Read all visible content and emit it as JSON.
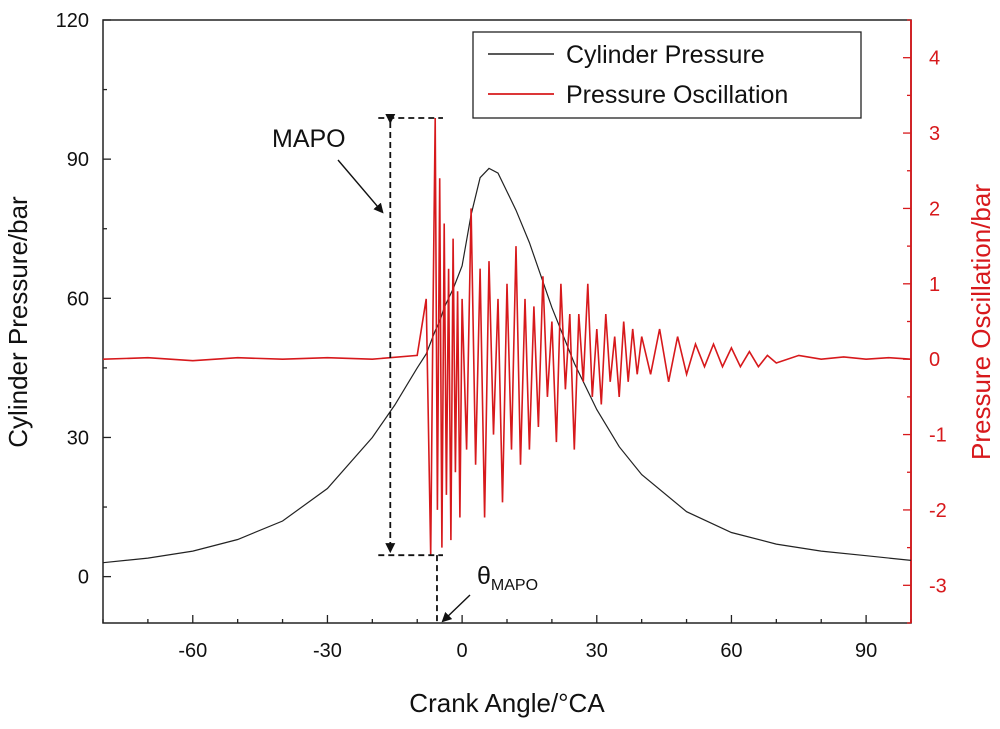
{
  "chart_data": {
    "type": "line",
    "xlabel": "Crank Angle/°CA",
    "ylabel_left": "Cylinder Pressure/bar",
    "ylabel_right": "Pressure Oscillation/bar",
    "xlim": [
      -80,
      100
    ],
    "ylim_left": [
      -10,
      120
    ],
    "ylim_right": [
      -3.5,
      4.5
    ],
    "x_ticks": [
      -60,
      -30,
      0,
      30,
      60,
      90
    ],
    "y_ticks_left": [
      0,
      30,
      60,
      90,
      120
    ],
    "y_ticks_right": [
      -3,
      -2,
      -1,
      0,
      1,
      2,
      3,
      4
    ],
    "legend_position": "top-right",
    "colors": {
      "pressure": "#222222",
      "oscillation": "#d7191c"
    },
    "series": [
      {
        "name": "Cylinder Pressure",
        "axis": "left",
        "x": [
          -80,
          -70,
          -60,
          -50,
          -40,
          -30,
          -20,
          -15,
          -10,
          -8,
          -6,
          -5,
          -4,
          -3,
          -2,
          0,
          2,
          4,
          6,
          8,
          10,
          12,
          15,
          20,
          25,
          30,
          35,
          40,
          50,
          60,
          70,
          80,
          90,
          100
        ],
        "values": [
          3,
          4,
          5.5,
          8,
          12,
          19,
          30,
          37,
          45,
          48,
          53,
          55,
          58,
          60,
          62,
          67,
          78,
          86,
          88,
          87,
          83,
          79,
          72,
          58,
          46,
          36,
          28,
          22,
          14,
          9.5,
          7,
          5.5,
          4.5,
          3.5
        ]
      },
      {
        "name": "Pressure Oscillation",
        "axis": "right",
        "x": [
          -80,
          -70,
          -60,
          -50,
          -40,
          -30,
          -20,
          -10,
          -8,
          -7,
          -6.5,
          -6,
          -5.5,
          -5,
          -4.5,
          -4,
          -3.5,
          -3,
          -2.5,
          -2,
          -1.5,
          -1,
          -0.5,
          0,
          1,
          2,
          3,
          4,
          5,
          6,
          7,
          8,
          9,
          10,
          11,
          12,
          13,
          14,
          15,
          16,
          17,
          18,
          19,
          20,
          21,
          22,
          23,
          24,
          25,
          26,
          27,
          28,
          29,
          30,
          31,
          32,
          33,
          34,
          35,
          36,
          37,
          38,
          39,
          40,
          42,
          44,
          46,
          48,
          50,
          52,
          54,
          56,
          58,
          60,
          62,
          64,
          66,
          68,
          70,
          75,
          80,
          85,
          90,
          95,
          100
        ],
        "values": [
          0,
          0.02,
          -0.02,
          0.02,
          0,
          0.02,
          0,
          0.05,
          0.8,
          -2.6,
          0.5,
          3.2,
          -2.0,
          2.4,
          -2.5,
          1.8,
          -1.8,
          1.2,
          -2.4,
          1.6,
          -1.5,
          0.9,
          -2.1,
          0.8,
          -1.2,
          2.0,
          -1.4,
          1.2,
          -2.1,
          1.3,
          -1.0,
          0.8,
          -1.9,
          1.0,
          -1.2,
          1.5,
          -1.4,
          0.8,
          -1.2,
          0.7,
          -0.9,
          1.1,
          -0.5,
          0.5,
          -1.1,
          1.0,
          -0.4,
          0.6,
          -1.2,
          0.6,
          -0.3,
          1.0,
          -0.5,
          0.4,
          -0.6,
          0.6,
          -0.3,
          0.3,
          -0.5,
          0.5,
          -0.3,
          0.4,
          -0.2,
          0.3,
          -0.2,
          0.4,
          -0.3,
          0.3,
          -0.2,
          0.2,
          -0.1,
          0.2,
          -0.1,
          0.15,
          -0.1,
          0.1,
          -0.1,
          0.05,
          -0.05,
          0.05,
          0,
          0.03,
          0,
          0.02,
          0
        ]
      }
    ],
    "annotations": [
      {
        "text": "MAPO",
        "points_to_x": -16
      },
      {
        "text": "θ",
        "subscript": "MAPO",
        "points_to_x": -5.6
      }
    ]
  }
}
